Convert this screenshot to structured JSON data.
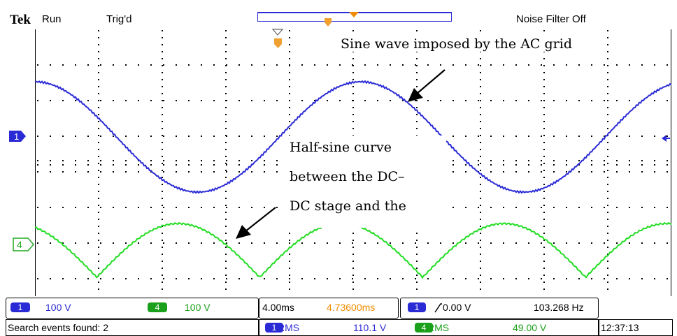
{
  "header": {
    "brand": "Tek",
    "run_state": "Run",
    "trigger_state": "Trig'd",
    "noise_filter": "Noise Filter Off"
  },
  "channels": {
    "ch1": {
      "marker": "1",
      "color": "#2b2bd6"
    },
    "ch4": {
      "marker": "4",
      "color": "#22dd22"
    }
  },
  "annotations": {
    "sine_label": "Sine wave imposed by the AC grid",
    "half_sine_line1": "Half-sine curve",
    "half_sine_line2": "between the DC–",
    "half_sine_line3": "DC stage and the"
  },
  "settings": {
    "ch1_badge": "1",
    "ch1_scale": "100 V",
    "ch4_badge": "4",
    "ch4_scale": "100 V",
    "timebase": "4.00ms",
    "trigger_pos": "4.73600ms",
    "trig_badge": "1",
    "trig_level": "0.00 V",
    "frequency": "103.268 Hz"
  },
  "status": {
    "search": "Search events found: 2",
    "meas1_badge": "1",
    "meas1_type": "RMS",
    "meas1_value": "110.1 V",
    "meas4_badge": "4",
    "meas4_type": "RMS",
    "meas4_value": "49.00 V",
    "clock": "12:37:13"
  }
}
